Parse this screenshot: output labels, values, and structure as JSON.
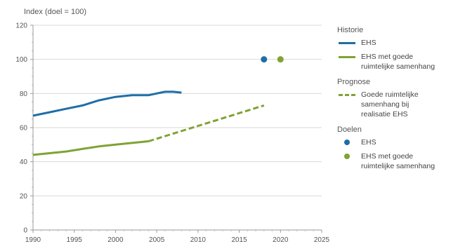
{
  "chart_data": {
    "type": "line",
    "ylabel": "Index (doel = 100)",
    "xlim": [
      1990,
      2025
    ],
    "ylim": [
      0,
      120
    ],
    "x_ticks": [
      1990,
      1995,
      2000,
      2005,
      2010,
      2015,
      2020,
      2025
    ],
    "y_ticks": [
      0,
      20,
      40,
      60,
      80,
      100,
      120
    ],
    "grid": true,
    "legend_position": "right",
    "colors": {
      "blue": "#1f6ea6",
      "green": "#7fa334"
    },
    "series": [
      {
        "name": "EHS",
        "group": "Historie",
        "style": "solid",
        "color": "#1f6ea6",
        "x": [
          1990,
          1992,
          1994,
          1996,
          1998,
          2000,
          2002,
          2004,
          2005,
          2006,
          2007,
          2008
        ],
        "y": [
          67,
          69,
          71,
          73,
          76,
          78,
          79,
          79,
          80,
          81,
          81,
          80.5
        ]
      },
      {
        "name": "EHS met goede ruimtelijke samenhang",
        "group": "Historie",
        "style": "solid",
        "color": "#7fa334",
        "x": [
          1990,
          1992,
          1994,
          1996,
          1998,
          2000,
          2002,
          2004
        ],
        "y": [
          44,
          45,
          46,
          47.5,
          49,
          50,
          51,
          52
        ]
      },
      {
        "name": "Goede ruimtelijke samenhang bij realisatie EHS",
        "group": "Prognose",
        "style": "dashed",
        "color": "#7fa334",
        "x": [
          2004,
          2018
        ],
        "y": [
          52,
          73
        ]
      }
    ],
    "points": [
      {
        "name": "EHS",
        "group": "Doelen",
        "x": 2018,
        "y": 100,
        "color": "#1f6ea6"
      },
      {
        "name": "EHS met goede ruimtelijke samenhang",
        "group": "Doelen",
        "x": 2020,
        "y": 100,
        "color": "#7fa334"
      }
    ]
  },
  "legend": {
    "groups": [
      {
        "title": "Historie",
        "items": [
          {
            "label": "EHS",
            "kind": "line",
            "color": "#1f6ea6"
          },
          {
            "label": "EHS met goede\nruimtelijke samenhang",
            "kind": "line",
            "color": "#7fa334"
          }
        ]
      },
      {
        "title": "Prognose",
        "items": [
          {
            "label": "Goede ruimtelijke\nsamenhang bij\nrealisatie EHS",
            "kind": "dashed",
            "color": "#7fa334"
          }
        ]
      },
      {
        "title": "Doelen",
        "items": [
          {
            "label": "EHS",
            "kind": "dot",
            "color": "#1f6ea6"
          },
          {
            "label": "EHS met goede\nruimtelijke samenhang",
            "kind": "dot",
            "color": "#7fa334"
          }
        ]
      }
    ]
  }
}
